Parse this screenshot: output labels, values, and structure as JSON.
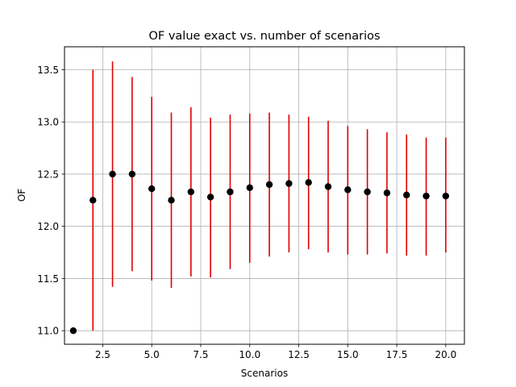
{
  "chart_data": {
    "type": "scatter",
    "title": "OF value exact vs. number of scenarios",
    "xlabel": "Scenarios",
    "ylabel": "OF",
    "xlim": [
      0.55,
      20.95
    ],
    "ylim": [
      10.87,
      13.72
    ],
    "xticks": [
      2.5,
      5.0,
      7.5,
      10.0,
      12.5,
      15.0,
      17.5,
      20.0
    ],
    "xtick_labels": [
      "2.5",
      "5.0",
      "7.5",
      "10.0",
      "12.5",
      "15.0",
      "17.5",
      "20.0"
    ],
    "yticks": [
      11.0,
      11.5,
      12.0,
      12.5,
      13.0,
      13.5
    ],
    "ytick_labels": [
      "11.0",
      "11.5",
      "12.0",
      "12.5",
      "13.0",
      "13.5"
    ],
    "grid": true,
    "point_color": "#000000",
    "errorbar_color": "#e00000",
    "points": [
      {
        "x": 1,
        "y": 11.0,
        "low": 11.0,
        "high": 11.0
      },
      {
        "x": 2,
        "y": 12.25,
        "low": 11.0,
        "high": 13.5
      },
      {
        "x": 3,
        "y": 12.5,
        "low": 11.42,
        "high": 13.58
      },
      {
        "x": 4,
        "y": 12.5,
        "low": 11.57,
        "high": 13.43
      },
      {
        "x": 5,
        "y": 12.36,
        "low": 11.48,
        "high": 13.24
      },
      {
        "x": 6,
        "y": 12.25,
        "low": 11.41,
        "high": 13.09
      },
      {
        "x": 7,
        "y": 12.33,
        "low": 11.52,
        "high": 13.14
      },
      {
        "x": 8,
        "y": 12.28,
        "low": 11.51,
        "high": 13.04
      },
      {
        "x": 9,
        "y": 12.33,
        "low": 11.59,
        "high": 13.07
      },
      {
        "x": 10,
        "y": 12.37,
        "low": 11.65,
        "high": 13.08
      },
      {
        "x": 11,
        "y": 12.4,
        "low": 11.71,
        "high": 13.09
      },
      {
        "x": 12,
        "y": 12.41,
        "low": 11.75,
        "high": 13.07
      },
      {
        "x": 13,
        "y": 12.42,
        "low": 11.78,
        "high": 13.05
      },
      {
        "x": 14,
        "y": 12.38,
        "low": 11.75,
        "high": 13.01
      },
      {
        "x": 15,
        "y": 12.35,
        "low": 11.73,
        "high": 12.96
      },
      {
        "x": 16,
        "y": 12.33,
        "low": 11.73,
        "high": 12.93
      },
      {
        "x": 17,
        "y": 12.32,
        "low": 11.74,
        "high": 12.9
      },
      {
        "x": 18,
        "y": 12.3,
        "low": 11.72,
        "high": 12.88
      },
      {
        "x": 19,
        "y": 12.29,
        "low": 11.72,
        "high": 12.85
      },
      {
        "x": 20,
        "y": 12.29,
        "low": 11.75,
        "high": 12.85
      }
    ]
  }
}
